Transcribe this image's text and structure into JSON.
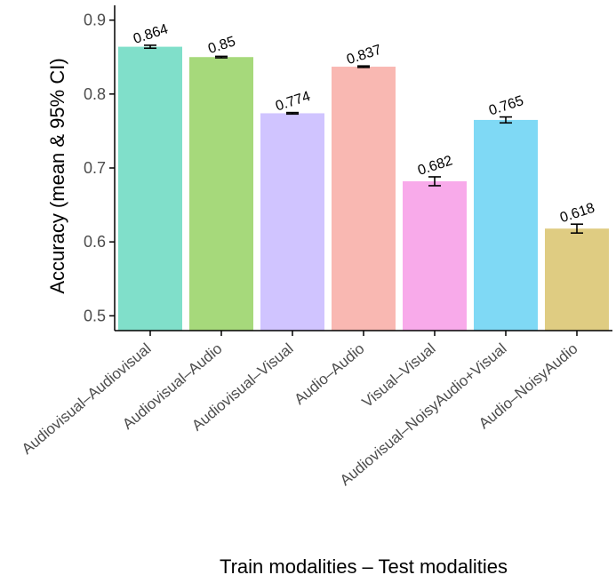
{
  "chart_data": {
    "type": "bar",
    "xlabel": "Train modalities – Test modalities",
    "ylabel": "Accuracy (mean & 95% CI)",
    "ylim": [
      0.48,
      0.92
    ],
    "yticks": [
      "0.5",
      "0.6",
      "0.7",
      "0.8",
      "0.9"
    ],
    "grid": false,
    "legend": "none",
    "categories": [
      "Audiovisual–Audiovisual",
      "Audiovisual–Audio",
      "Audiovisual–Visual",
      "Audio–Audio",
      "Visual–Visual",
      "Audiovisual–NoisyAudio+Visual",
      "Audio–NoisyAudio"
    ],
    "values": [
      0.864,
      0.85,
      0.774,
      0.837,
      0.682,
      0.765,
      0.618
    ],
    "value_labels": [
      "0.864",
      "0.85",
      "0.774",
      "0.837",
      "0.682",
      "0.765",
      "0.618"
    ],
    "ci_low": [
      0.862,
      0.849,
      0.773,
      0.836,
      0.676,
      0.761,
      0.612
    ],
    "ci_high": [
      0.866,
      0.851,
      0.775,
      0.838,
      0.688,
      0.769,
      0.624
    ],
    "colors": [
      "#80dfca",
      "#a6d97b",
      "#d0c4ff",
      "#f9b8b2",
      "#f8aaea",
      "#7fd9f5",
      "#dfcc82"
    ]
  }
}
